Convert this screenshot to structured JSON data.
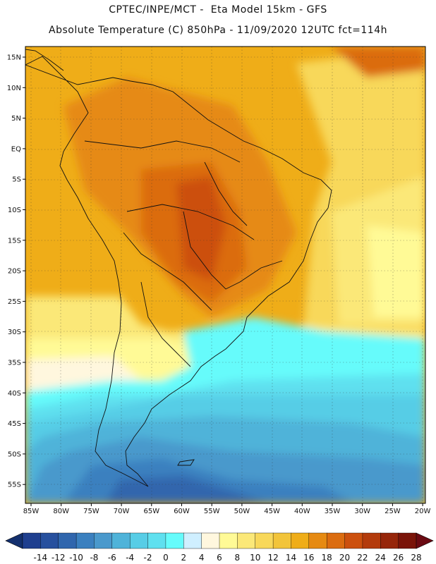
{
  "header": {
    "line1": "CPTEC/INPE/MCT -  Eta Model 15km - GFS",
    "line2": "Absolute Temperature (C) 850hPa - 11/09/2020 12UTC fct=114h"
  },
  "map": {
    "lat_labels": [
      "15N",
      "10N",
      "5N",
      "EQ",
      "5S",
      "10S",
      "15S",
      "20S",
      "25S",
      "30S",
      "35S",
      "40S",
      "45S",
      "50S",
      "55S"
    ],
    "lon_labels": [
      "85W",
      "80W",
      "75W",
      "70W",
      "65W",
      "60W",
      "55W",
      "50W",
      "45W",
      "40W",
      "35W",
      "30W",
      "25W",
      "20W"
    ]
  },
  "colorbar": {
    "labels": [
      "-14",
      "-12",
      "-10",
      "-8",
      "-6",
      "-4",
      "-2",
      "0",
      "2",
      "4",
      "6",
      "8",
      "10",
      "12",
      "14",
      "16",
      "18",
      "20",
      "22",
      "24",
      "26",
      "28"
    ],
    "colors": [
      "#1f3f8f",
      "#27509e",
      "#3066ad",
      "#3b80bf",
      "#4a99cc",
      "#4fb3d9",
      "#57cde6",
      "#5fe0ef",
      "#66fbfb",
      "#cfefff",
      "#fff7de",
      "#fffa96",
      "#fbe878",
      "#f8d85a",
      "#f2c43a",
      "#efad18",
      "#e68a12",
      "#db6c10",
      "#cc500e",
      "#b33b0c",
      "#96260a",
      "#7a1409"
    ],
    "under_color": "#14306e",
    "over_color": "#6b0a12"
  }
}
